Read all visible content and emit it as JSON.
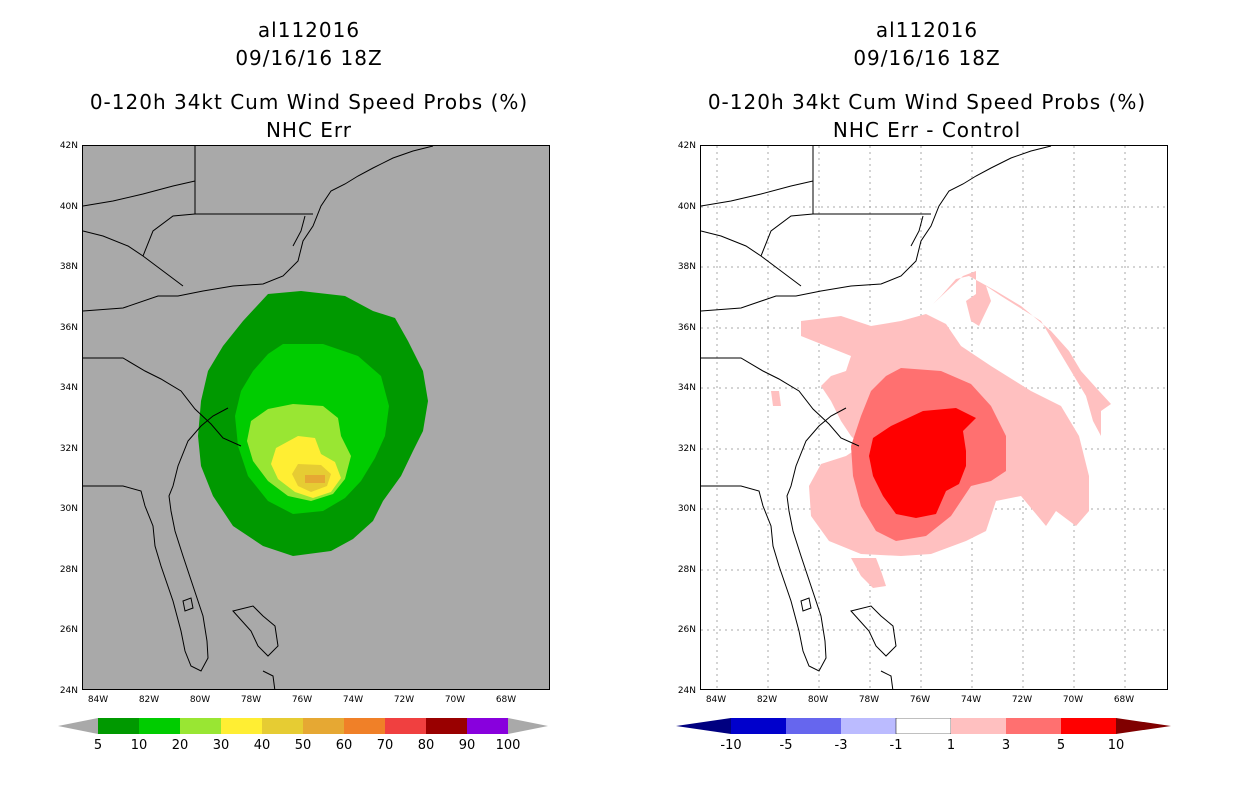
{
  "left": {
    "title_storm": "al112016",
    "title_time": "09/16/16 18Z",
    "title_product": "0-120h 34kt Cum Wind Speed Probs (%)",
    "title_sub": "NHC Err",
    "y_ticks": [
      "42N",
      "40N",
      "38N",
      "36N",
      "34N",
      "32N",
      "30N",
      "28N",
      "26N",
      "24N"
    ],
    "x_ticks": [
      "84W",
      "82W",
      "80W",
      "78W",
      "76W",
      "74W",
      "72W",
      "70W",
      "68W"
    ],
    "colorbar_labels": [
      "5",
      "10",
      "20",
      "30",
      "40",
      "50",
      "60",
      "70",
      "80",
      "90",
      "100"
    ],
    "colorbar_colors": [
      "#009900",
      "#00cc00",
      "#99e633",
      "#ffee33",
      "#e6cc33",
      "#e6a833",
      "#f08028",
      "#f04040",
      "#990000",
      "#8800dd"
    ]
  },
  "right": {
    "title_storm": "al112016",
    "title_time": "09/16/16 18Z",
    "title_product": "0-120h 34kt Cum Wind Speed Probs (%)",
    "title_sub": "NHC Err - Control",
    "y_ticks": [
      "42N",
      "40N",
      "38N",
      "36N",
      "34N",
      "32N",
      "30N",
      "28N",
      "26N",
      "24N"
    ],
    "x_ticks": [
      "84W",
      "82W",
      "80W",
      "78W",
      "76W",
      "74W",
      "72W",
      "70W",
      "68W"
    ],
    "colorbar_labels": [
      "-10",
      "-5",
      "-3",
      "-1",
      "1",
      "3",
      "5",
      "10"
    ],
    "colorbar_colors": [
      "#0000cc",
      "#6666ee",
      "#bbbbff",
      "#ffffff",
      "#ffc0c0",
      "#ff7070",
      "#ff0000"
    ]
  }
}
